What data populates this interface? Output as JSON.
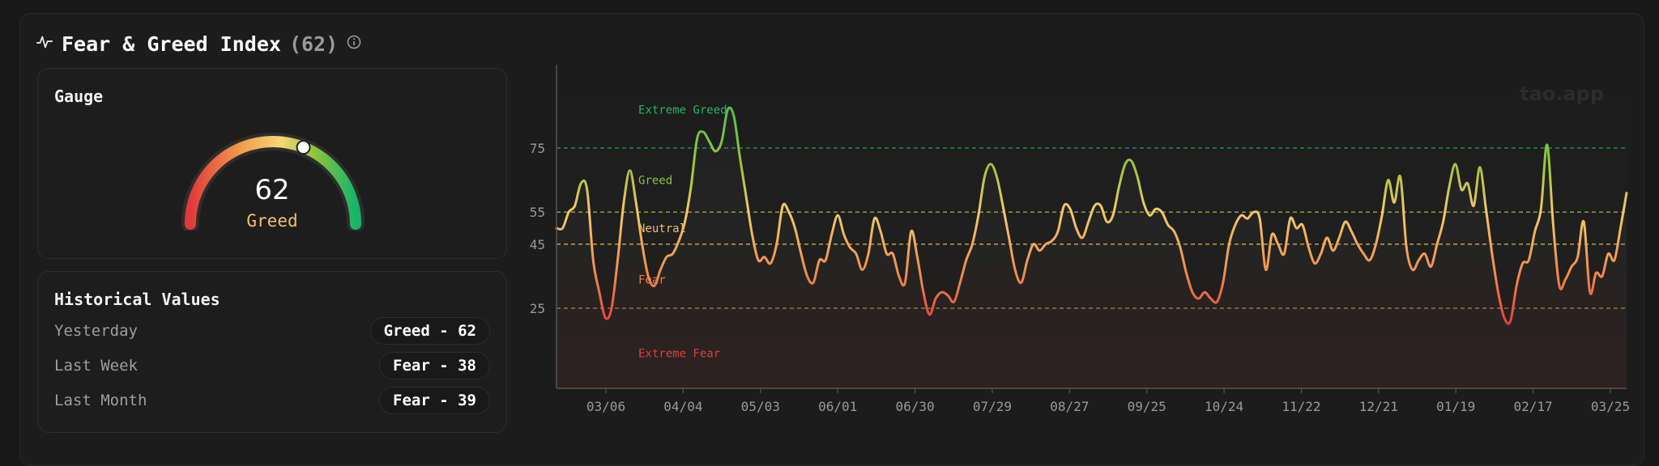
{
  "header": {
    "title": "Fear & Greed Index",
    "value": "(62)"
  },
  "gauge": {
    "title": "Gauge",
    "value": "62",
    "label": "Greed",
    "fraction": 0.62
  },
  "historical": {
    "title": "Historical Values",
    "rows": [
      {
        "label": "Yesterday",
        "badge": "Greed - 62"
      },
      {
        "label": "Last Week",
        "badge": "Fear - 38"
      },
      {
        "label": "Last Month",
        "badge": "Fear - 39"
      }
    ]
  },
  "chart_data": {
    "type": "line",
    "watermark": "tao.app",
    "ylim": [
      0,
      100
    ],
    "yticks": [
      25,
      45,
      55,
      75
    ],
    "zones": [
      {
        "label": "Extreme Greed",
        "value": 87,
        "color": "#22b56a"
      },
      {
        "label": "Greed",
        "value": 65,
        "color": "#8fc43a"
      },
      {
        "label": "Neutral",
        "value": 50,
        "color": "#f4c06a"
      },
      {
        "label": "Fear",
        "value": 34,
        "color": "#f07a3a"
      },
      {
        "label": "Extreme Fear",
        "value": 11,
        "color": "#e03a3a"
      }
    ],
    "thresholds": [
      {
        "value": 75,
        "color": "#22b56a"
      },
      {
        "value": 55,
        "color": "#b8c23a"
      },
      {
        "value": 45,
        "color": "#f4c84a"
      },
      {
        "value": 25,
        "color": "#e0873a"
      }
    ],
    "xticks": [
      "03/06",
      "04/04",
      "05/03",
      "06/01",
      "06/30",
      "07/29",
      "08/27",
      "09/25",
      "10/24",
      "11/22",
      "12/21",
      "01/19",
      "02/17",
      "03/25"
    ],
    "values": [
      50,
      50,
      55,
      57,
      64,
      62,
      40,
      30,
      22,
      25,
      40,
      58,
      68,
      58,
      45,
      35,
      32,
      37,
      41,
      42,
      46,
      52,
      63,
      78,
      80,
      77,
      74,
      77,
      87,
      85,
      72,
      60,
      48,
      40,
      41,
      39,
      45,
      57,
      55,
      50,
      42,
      35,
      33,
      40,
      40,
      48,
      54,
      48,
      44,
      42,
      37,
      42,
      53,
      49,
      42,
      42,
      35,
      33,
      49,
      41,
      30,
      23,
      28,
      30,
      29,
      27,
      33,
      40,
      45,
      54,
      66,
      70,
      66,
      57,
      47,
      37,
      33,
      40,
      45,
      43,
      45,
      46,
      49,
      57,
      56,
      50,
      47,
      52,
      57,
      57,
      52,
      54,
      63,
      70,
      71,
      66,
      58,
      54,
      56,
      55,
      51,
      49,
      44,
      36,
      30,
      28,
      30,
      28,
      27,
      33,
      45,
      51,
      54,
      53,
      55,
      53,
      37,
      48,
      45,
      42,
      53,
      50,
      51,
      44,
      39,
      42,
      47,
      43,
      47,
      52,
      49,
      45,
      42,
      40,
      45,
      54,
      65,
      58,
      66,
      44,
      37,
      40,
      42,
      38,
      45,
      52,
      63,
      70,
      62,
      64,
      57,
      69,
      56,
      42,
      30,
      22,
      21,
      32,
      39,
      40,
      49,
      56,
      76,
      51,
      32,
      34,
      38,
      41,
      52,
      30,
      36,
      35,
      42,
      40,
      50,
      61
    ]
  }
}
